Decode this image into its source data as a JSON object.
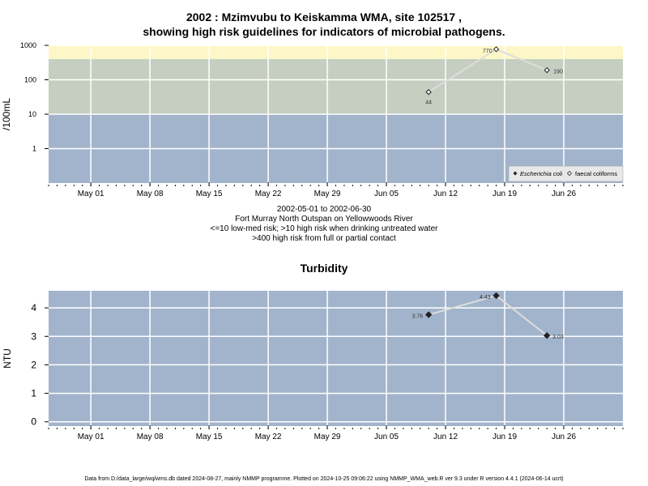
{
  "chart1": {
    "title_line1": "2002 : Mzimvubu to Keiskamma WMA, site 102517 ,",
    "title_line2": "showing high risk guidelines for indicators of microbial pathogens.",
    "caption": [
      "2002-05-01 to 2002-06-30",
      "Fort Murray North Outspan on Yellowwoods River",
      "<=10 low-med risk; >10 high risk when drinking untreated water",
      ">400 high risk from full or partial contact"
    ],
    "legend": [
      "Escherichia coli",
      "faecal coliforms"
    ]
  },
  "chart2": {
    "title": "Turbidity"
  },
  "footer": "Data from D:/data_large/wq/wms.db dated 2024-08-27, mainly NMMP programme. Plotted on 2024-10-25 09:06:22 using NMMP_WMA_web.R ver 9.3 under R version 4.4.1 (2024-06-14 ucrt)",
  "colors": {
    "band_low": "#a2b4cc",
    "band_mid": "#c5cec1",
    "band_high": "#fdf7c7",
    "grid": "#ffffff",
    "line": "#dddddd"
  },
  "chart_data": [
    {
      "type": "line",
      "title": "2002 : Mzimvubu to Keiskamma WMA, site 102517 , showing high risk guidelines for indicators of microbial pathogens.",
      "ylabel": "/100mL",
      "yscale": "log",
      "ylim": [
        0.1,
        1000
      ],
      "yticks": [
        1,
        10,
        100,
        1000
      ],
      "ytick_labels": [
        "1",
        "10",
        "100",
        "1000"
      ],
      "xlim": [
        "2002-04-26",
        "2002-07-03"
      ],
      "xticks": [
        "2002-05-01",
        "2002-05-08",
        "2002-05-15",
        "2002-05-22",
        "2002-05-29",
        "2002-06-05",
        "2002-06-12",
        "2002-06-19",
        "2002-06-26"
      ],
      "xtick_labels": [
        "May 01",
        "May 08",
        "May 15",
        "May 22",
        "May 29",
        "Jun 05",
        "Jun 12",
        "Jun 19",
        "Jun 26"
      ],
      "bands": [
        {
          "from": 0.1,
          "to": 10,
          "color": "#a2b4cc"
        },
        {
          "from": 10,
          "to": 400,
          "color": "#c5cec1"
        },
        {
          "from": 400,
          "to": 1000,
          "color": "#fdf7c7"
        }
      ],
      "series": [
        {
          "name": "faecal coliforms",
          "marker": "open-diamond",
          "x": [
            "2002-06-10",
            "2002-06-18",
            "2002-06-24"
          ],
          "values": [
            44,
            770,
            190
          ],
          "labels": [
            "44",
            "770",
            "190"
          ]
        }
      ],
      "legend_position": "bottom-right"
    },
    {
      "type": "line",
      "title": "Turbidity",
      "ylabel": "NTU",
      "ylim": [
        -0.15,
        4.6
      ],
      "yticks": [
        0,
        1,
        2,
        3,
        4
      ],
      "ytick_labels": [
        "0",
        "1",
        "2",
        "3",
        "4"
      ],
      "xlim": [
        "2002-04-26",
        "2002-07-03"
      ],
      "xticks": [
        "2002-05-01",
        "2002-05-08",
        "2002-05-15",
        "2002-05-22",
        "2002-05-29",
        "2002-06-05",
        "2002-06-12",
        "2002-06-19",
        "2002-06-26"
      ],
      "xtick_labels": [
        "May 01",
        "May 08",
        "May 15",
        "May 22",
        "May 29",
        "Jun 05",
        "Jun 12",
        "Jun 19",
        "Jun 26"
      ],
      "series": [
        {
          "marker": "filled-diamond",
          "x": [
            "2002-06-10",
            "2002-06-18",
            "2002-06-24"
          ],
          "values": [
            3.76,
            4.43,
            3.03
          ],
          "labels": [
            "3.76",
            "4.43",
            "3.03"
          ]
        }
      ]
    }
  ]
}
